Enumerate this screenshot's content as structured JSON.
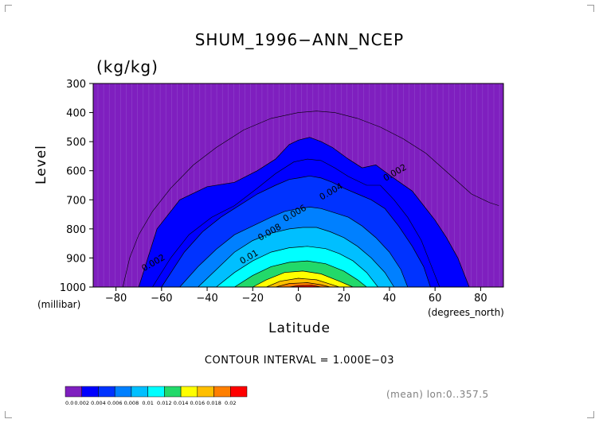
{
  "chart_data": {
    "type": "contour",
    "title": "SHUM_1996−ANN_NCEP",
    "units": "(kg/kg)",
    "xlabel": "Latitude",
    "ylabel": "Level",
    "x_unit": "(degrees_north)",
    "y_unit": "(millibar)",
    "xlim": [
      -90,
      90
    ],
    "ylim": [
      1000,
      300
    ],
    "x_ticks": [
      -80,
      -60,
      -40,
      -20,
      0,
      20,
      40,
      60,
      80
    ],
    "y_ticks": [
      300,
      400,
      500,
      600,
      700,
      800,
      900,
      1000
    ],
    "contour_interval_text": "CONTOUR INTERVAL = 1.000E−03",
    "info_text": "(mean) lon:0..357.5",
    "contour_levels": [
      0.0,
      0.002,
      0.004,
      0.006,
      0.008,
      0.01,
      0.012,
      0.014,
      0.016,
      0.018,
      0.02
    ],
    "colorbar_labels": [
      "0.0",
      "0.002",
      "0.004",
      "0.006",
      "0.008",
      "0.01",
      "0.012",
      "0.014",
      "0.016",
      "0.018",
      "0.02"
    ],
    "colorbar_colors": [
      "#7f1fbf",
      "#0000ff",
      "#0033ff",
      "#0080ff",
      "#00bfff",
      "#00ffff",
      "#22d96a",
      "#ffff00",
      "#ffbf00",
      "#ff7f00",
      "#ff0000"
    ],
    "contour_labels": [
      {
        "text": "0.002",
        "x": 43,
        "y": 615
      },
      {
        "text": "0.002",
        "x": -63,
        "y": 925
      },
      {
        "text": "0.004",
        "x": 15,
        "y": 680
      },
      {
        "text": "0.006",
        "x": -1,
        "y": 755
      },
      {
        "text": "0.008",
        "x": -12,
        "y": 820
      },
      {
        "text": "0.01",
        "x": -21,
        "y": 905
      }
    ],
    "region_boundaries": [
      {
        "level": 0.002,
        "fill": "#0000ff",
        "points": [
          [
            -70,
            1000
          ],
          [
            -62,
            800
          ],
          [
            -52,
            700
          ],
          [
            -40,
            655
          ],
          [
            -28,
            640
          ],
          [
            -18,
            600
          ],
          [
            -10,
            560
          ],
          [
            -4,
            510
          ],
          [
            0,
            495
          ],
          [
            5,
            485
          ],
          [
            10,
            500
          ],
          [
            15,
            520
          ],
          [
            22,
            560
          ],
          [
            28,
            590
          ],
          [
            34,
            580
          ],
          [
            40,
            615
          ],
          [
            50,
            670
          ],
          [
            55,
            720
          ],
          [
            60,
            770
          ],
          [
            65,
            830
          ],
          [
            70,
            900
          ],
          [
            75,
            1000
          ]
        ]
      },
      {
        "level": 0.004,
        "fill": "#0033ff",
        "points": [
          [
            -60,
            1000
          ],
          [
            -50,
            880
          ],
          [
            -42,
            810
          ],
          [
            -34,
            760
          ],
          [
            -26,
            720
          ],
          [
            -18,
            680
          ],
          [
            -10,
            650
          ],
          [
            -4,
            630
          ],
          [
            0,
            625
          ],
          [
            5,
            618
          ],
          [
            10,
            625
          ],
          [
            15,
            640
          ],
          [
            20,
            660
          ],
          [
            26,
            680
          ],
          [
            32,
            700
          ],
          [
            38,
            730
          ],
          [
            44,
            790
          ],
          [
            50,
            860
          ],
          [
            55,
            930
          ],
          [
            58,
            1000
          ]
        ]
      },
      {
        "level": 0.006,
        "fill": "#0080ff",
        "points": [
          [
            -52,
            1000
          ],
          [
            -44,
            930
          ],
          [
            -36,
            870
          ],
          [
            -28,
            820
          ],
          [
            -20,
            790
          ],
          [
            -12,
            760
          ],
          [
            -6,
            740
          ],
          [
            0,
            730
          ],
          [
            5,
            725
          ],
          [
            10,
            730
          ],
          [
            16,
            745
          ],
          [
            22,
            760
          ],
          [
            28,
            790
          ],
          [
            34,
            830
          ],
          [
            40,
            880
          ],
          [
            45,
            940
          ],
          [
            48,
            1000
          ]
        ]
      },
      {
        "level": 0.008,
        "fill": "#00bfff",
        "points": [
          [
            -44,
            1000
          ],
          [
            -36,
            940
          ],
          [
            -28,
            880
          ],
          [
            -20,
            840
          ],
          [
            -12,
            815
          ],
          [
            -4,
            800
          ],
          [
            2,
            795
          ],
          [
            8,
            795
          ],
          [
            14,
            810
          ],
          [
            20,
            830
          ],
          [
            26,
            860
          ],
          [
            32,
            900
          ],
          [
            38,
            950
          ],
          [
            42,
            1000
          ]
        ]
      },
      {
        "level": 0.01,
        "fill": "#00ffff",
        "points": [
          [
            -36,
            1000
          ],
          [
            -28,
            950
          ],
          [
            -20,
            910
          ],
          [
            -12,
            880
          ],
          [
            -4,
            865
          ],
          [
            4,
            860
          ],
          [
            12,
            868
          ],
          [
            18,
            885
          ],
          [
            24,
            910
          ],
          [
            30,
            950
          ],
          [
            35,
            1000
          ]
        ]
      },
      {
        "level": 0.012,
        "fill": "#22d96a",
        "points": [
          [
            -28,
            1000
          ],
          [
            -20,
            960
          ],
          [
            -12,
            930
          ],
          [
            -4,
            915
          ],
          [
            4,
            910
          ],
          [
            12,
            920
          ],
          [
            20,
            945
          ],
          [
            26,
            975
          ],
          [
            30,
            1000
          ]
        ]
      },
      {
        "level": 0.014,
        "fill": "#ffff00",
        "points": [
          [
            -20,
            1000
          ],
          [
            -14,
            975
          ],
          [
            -6,
            950
          ],
          [
            2,
            945
          ],
          [
            10,
            955
          ],
          [
            18,
            980
          ],
          [
            24,
            1000
          ]
        ]
      },
      {
        "level": 0.016,
        "fill": "#ffbf00",
        "points": [
          [
            -14,
            1000
          ],
          [
            -8,
            980
          ],
          [
            0,
            970
          ],
          [
            8,
            975
          ],
          [
            14,
            990
          ],
          [
            18,
            1000
          ]
        ]
      },
      {
        "level": 0.018,
        "fill": "#ff7f00",
        "points": [
          [
            -10,
            1000
          ],
          [
            -4,
            988
          ],
          [
            4,
            985
          ],
          [
            10,
            992
          ],
          [
            14,
            1000
          ]
        ]
      },
      {
        "level": 0.02,
        "fill": "#ff0000",
        "points": [
          [
            -4,
            1000
          ],
          [
            0,
            995
          ],
          [
            6,
            994
          ],
          [
            10,
            1000
          ]
        ]
      }
    ],
    "outer_contour_0_001": [
      [
        -77,
        1000
      ],
      [
        -74,
        900
      ],
      [
        -70,
        820
      ],
      [
        -64,
        740
      ],
      [
        -56,
        660
      ],
      [
        -46,
        580
      ],
      [
        -36,
        520
      ],
      [
        -24,
        460
      ],
      [
        -12,
        420
      ],
      [
        0,
        400
      ],
      [
        8,
        395
      ],
      [
        16,
        400
      ],
      [
        26,
        420
      ],
      [
        36,
        450
      ],
      [
        46,
        490
      ],
      [
        56,
        540
      ],
      [
        66,
        610
      ],
      [
        76,
        680
      ],
      [
        84,
        710
      ],
      [
        88,
        720
      ]
    ],
    "inner_contour_0_003": [
      [
        -64,
        1000
      ],
      [
        -56,
        900
      ],
      [
        -48,
        820
      ],
      [
        -38,
        760
      ],
      [
        -28,
        720
      ],
      [
        -18,
        660
      ],
      [
        -10,
        610
      ],
      [
        -2,
        570
      ],
      [
        4,
        560
      ],
      [
        10,
        565
      ],
      [
        16,
        590
      ],
      [
        22,
        620
      ],
      [
        30,
        650
      ],
      [
        36,
        650
      ],
      [
        42,
        700
      ],
      [
        48,
        760
      ],
      [
        54,
        840
      ],
      [
        58,
        920
      ],
      [
        62,
        1000
      ]
    ]
  }
}
